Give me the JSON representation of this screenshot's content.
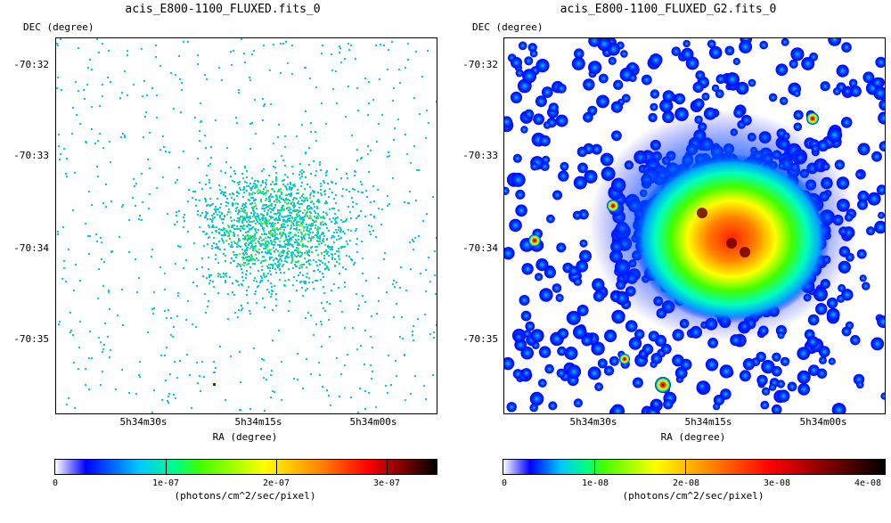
{
  "panels": [
    {
      "title": "acis_E800-1100_FLUXED.fits_0",
      "dec_label": "DEC (degree)",
      "ra_label": "RA (degree)",
      "y_ticks": [
        "-70:32",
        "-70:33",
        "-70:34",
        "-70:35"
      ],
      "x_ticks": [
        "5h34m30s",
        "5h34m15s",
        "5h34m00s"
      ],
      "colorbar": {
        "ticks": [
          "0",
          "1e-07",
          "2e-07",
          "3e-07"
        ],
        "units": "(photons/cm^2/sec/pixel)"
      }
    },
    {
      "title": "acis_E800-1100_FLUXED_G2.fits_0",
      "dec_label": "DEC (degree)",
      "ra_label": "RA (degree)",
      "y_ticks": [
        "-70:32",
        "-70:33",
        "-70:34",
        "-70:35"
      ],
      "x_ticks": [
        "5h34m30s",
        "5h34m15s",
        "5h34m00s"
      ],
      "colorbar": {
        "ticks": [
          "0",
          "1e-08",
          "2e-08",
          "3e-08",
          "4e-08"
        ],
        "units": "(photons/cm^2/sec/pixel)"
      }
    }
  ],
  "colormap": [
    "#ffffff",
    "#0000ff",
    "#00ffff",
    "#00ff00",
    "#ffff00",
    "#ff8000",
    "#ff0000",
    "#000000"
  ]
}
